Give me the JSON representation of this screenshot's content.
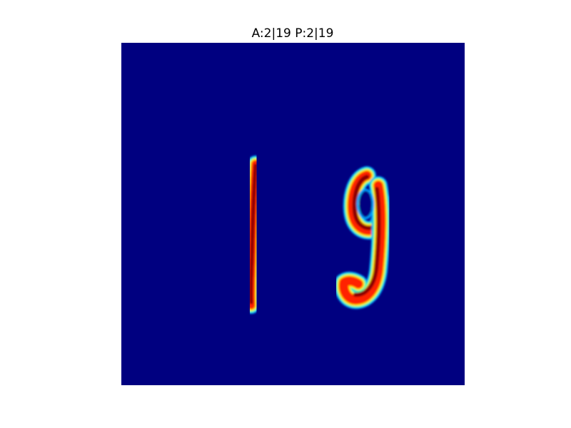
{
  "title": "A:2|19 P:2|19",
  "image": {
    "description_colormap": "jet",
    "background_color": "#000080",
    "glyphs": [
      "1",
      "9"
    ],
    "colors": {
      "core": "#8b0000",
      "hot": "#ff2000",
      "warm": "#ffb000",
      "mid": "#40ffb0",
      "cool": "#00a0ff"
    }
  }
}
